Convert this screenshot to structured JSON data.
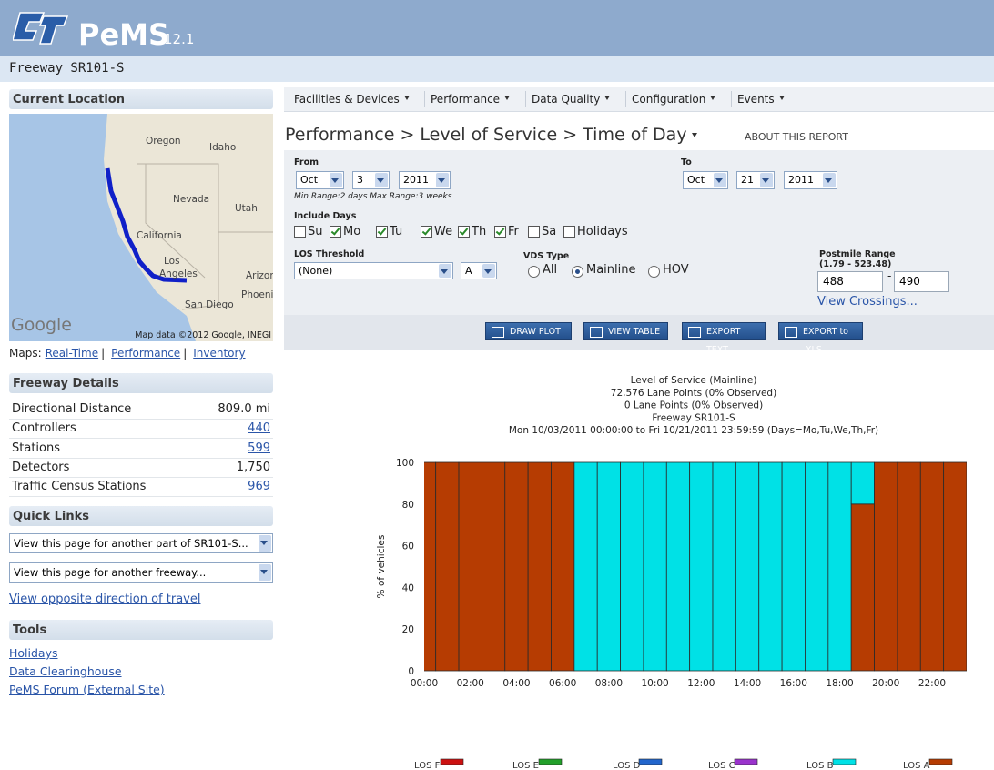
{
  "header": {
    "logo": "PeMS",
    "version": "12.1",
    "subtitle": "Freeway SR101-S"
  },
  "sidebar": {
    "location_title": "Current Location",
    "map_labels": [
      "Oregon",
      "Idaho",
      "Nevada",
      "Utah",
      "California",
      "Los",
      "Angeles",
      "Arizona",
      "Phoenix",
      "San Diego"
    ],
    "map_brand": "Google",
    "map_credit": "Map data ©2012 Google, INEGI",
    "maps_prefix": "Maps:",
    "map_links": [
      "Real-Time",
      "Performance",
      "Inventory"
    ],
    "details_title": "Freeway Details",
    "details": [
      {
        "label": "Directional Distance",
        "value": "809.0 mi",
        "link": false
      },
      {
        "label": "Controllers",
        "value": "440",
        "link": true
      },
      {
        "label": "Stations",
        "value": "599",
        "link": true
      },
      {
        "label": "Detectors",
        "value": "1,750",
        "link": false
      },
      {
        "label": "Traffic Census Stations",
        "value": "969",
        "link": true
      }
    ],
    "quick_links_title": "Quick Links",
    "quick_links": [
      "View this page for another part of SR101-S...",
      "View this page for another freeway..."
    ],
    "opposite_link": "View opposite direction of travel",
    "tools_title": "Tools",
    "tools": [
      "Holidays",
      "Data Clearinghouse",
      "PeMS Forum (External Site)"
    ]
  },
  "nav": [
    "Facilities & Devices",
    "Performance",
    "Data Quality",
    "Configuration",
    "Events"
  ],
  "report": {
    "breadcrumb": "Performance > Level of Service > Time of Day",
    "about": "ABOUT THIS REPORT",
    "from_label": "From",
    "from": [
      "Oct",
      "3",
      "2011"
    ],
    "to_label": "To",
    "to": [
      "Oct",
      "21",
      "2011"
    ],
    "range_note": "Min Range:2 days Max Range:3 weeks",
    "days_label": "Include Days",
    "days": [
      {
        "label": "Su",
        "checked": false
      },
      {
        "label": "Mo",
        "checked": true
      },
      {
        "label": "Tu",
        "checked": true
      },
      {
        "label": "We",
        "checked": true
      },
      {
        "label": "Th",
        "checked": true
      },
      {
        "label": "Fr",
        "checked": true
      },
      {
        "label": "Sa",
        "checked": false
      },
      {
        "label": "Holidays",
        "checked": false
      }
    ],
    "los_label": "LOS Threshold",
    "los_threshold": "(None)",
    "los_level": "A",
    "vds_label": "VDS Type",
    "vds_options": [
      {
        "label": "All",
        "selected": false
      },
      {
        "label": "Mainline",
        "selected": true
      },
      {
        "label": "HOV",
        "selected": false
      }
    ],
    "postmile_label": "Postmile Range",
    "postmile_bounds": "(1.79 - 523.48)",
    "postmile_from": "488",
    "postmile_to": "490",
    "crossings": "View Crossings...",
    "buttons": [
      "DRAW PLOT",
      "VIEW TABLE",
      "EXPORT TEXT",
      "EXPORT to .XLS"
    ]
  },
  "chart_data": {
    "type": "stacked_bar",
    "title": "Level of Service (Mainline)",
    "subtitle": [
      "72,576 Lane Points (0% Observed)",
      "0 Lane Points (0% Observed)",
      "Freeway SR101-S",
      "Mon 10/03/2011 00:00:00 to Fri 10/21/2011 23:59:59 (Days=Mo,Tu,We,Th,Fr)"
    ],
    "ylabel": "% of vehicles",
    "x": [
      0,
      1,
      2,
      3,
      4,
      5,
      6,
      7,
      8,
      9,
      10,
      11,
      12,
      13,
      14,
      15,
      16,
      17,
      18,
      19,
      20,
      21,
      22,
      23
    ],
    "xlim": [
      0,
      23.5
    ],
    "xticks": [
      {
        "value": 0,
        "label": "00:00"
      },
      {
        "value": 2,
        "label": "02:00"
      },
      {
        "value": 4,
        "label": "04:00"
      },
      {
        "value": 6,
        "label": "06:00"
      },
      {
        "value": 8,
        "label": "08:00"
      },
      {
        "value": 10,
        "label": "10:00"
      },
      {
        "value": 12,
        "label": "12:00"
      },
      {
        "value": 14,
        "label": "14:00"
      },
      {
        "value": 16,
        "label": "16:00"
      },
      {
        "value": 18,
        "label": "18:00"
      },
      {
        "value": 20,
        "label": "20:00"
      },
      {
        "value": 22,
        "label": "22:00"
      }
    ],
    "ylim": [
      0,
      100
    ],
    "yticks": [
      0,
      20,
      40,
      60,
      80,
      100
    ],
    "legend": "bottom",
    "series": [
      {
        "name": "LOS F",
        "color": "#cc1111",
        "values": [
          0,
          0,
          0,
          0,
          0,
          0,
          0,
          0,
          0,
          0,
          0,
          0,
          0,
          0,
          0,
          0,
          0,
          0,
          0,
          0,
          0,
          0,
          0,
          0
        ]
      },
      {
        "name": "LOS E",
        "color": "#22a02a",
        "values": [
          0,
          0,
          0,
          0,
          0,
          0,
          0,
          0,
          0,
          0,
          0,
          0,
          0,
          0,
          0,
          0,
          0,
          0,
          0,
          0,
          0,
          0,
          0,
          0
        ]
      },
      {
        "name": "LOS D",
        "color": "#2266cc",
        "values": [
          0,
          0,
          0,
          0,
          0,
          0,
          0,
          0,
          0,
          0,
          0,
          0,
          0,
          0,
          0,
          0,
          0,
          0,
          0,
          0,
          0,
          0,
          0,
          0
        ]
      },
      {
        "name": "LOS C",
        "color": "#9a33cc",
        "values": [
          0,
          0,
          0,
          0,
          0,
          0,
          0,
          0,
          0,
          0,
          0,
          0,
          0,
          0,
          0,
          0,
          0,
          0,
          0,
          0,
          0,
          0,
          0,
          0
        ]
      },
      {
        "name": "LOS B",
        "color": "#00e1e6",
        "values": [
          0,
          0,
          0,
          0,
          0,
          0,
          0,
          100,
          100,
          100,
          100,
          100,
          100,
          100,
          100,
          100,
          100,
          100,
          100,
          20,
          0,
          0,
          0,
          0
        ]
      },
      {
        "name": "LOS A",
        "color": "#b63c02",
        "values": [
          100,
          100,
          100,
          100,
          100,
          100,
          100,
          0,
          0,
          0,
          0,
          0,
          0,
          0,
          0,
          0,
          0,
          0,
          0,
          80,
          100,
          100,
          100,
          100
        ]
      }
    ]
  }
}
